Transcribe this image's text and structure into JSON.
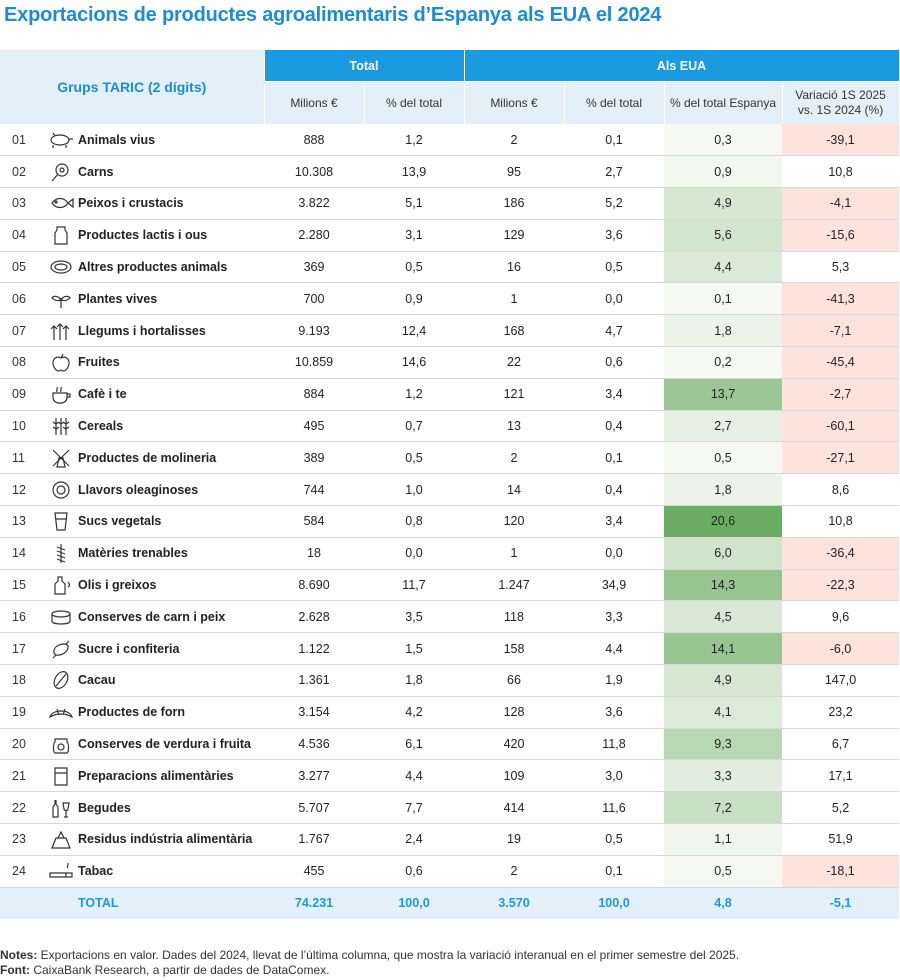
{
  "title": "Exportacions de productes agroalimentaris d’Espanya als EUA el 2024",
  "headers": {
    "group": "Grups TARIC (2 dígits)",
    "total": "Total",
    "eua": "Als EUA",
    "milions": "Milions €",
    "pct_total": "% del total",
    "pct_espanya": "% del total Espanya",
    "variacio_a": "Variació 1S 2025",
    "variacio_b": "vs. 1S 2024 (%)"
  },
  "rows": [
    {
      "code": "01",
      "icon": "pig-icon",
      "name": "Animals vius",
      "tot_m": "888",
      "tot_p": "1,2",
      "eua_m": "2",
      "eua_p": "0,1",
      "esp": "0,3",
      "esp_v": 0.3,
      "var": "-39,1",
      "neg": true
    },
    {
      "code": "02",
      "icon": "meat-icon",
      "name": "Carns",
      "tot_m": "10.308",
      "tot_p": "13,9",
      "eua_m": "95",
      "eua_p": "2,7",
      "esp": "0,9",
      "esp_v": 0.9,
      "var": "10,8",
      "neg": false
    },
    {
      "code": "03",
      "icon": "fish-icon",
      "name": "Peixos i crustacis",
      "tot_m": "3.822",
      "tot_p": "5,1",
      "eua_m": "186",
      "eua_p": "5,2",
      "esp": "4,9",
      "esp_v": 4.9,
      "var": "-4,1",
      "neg": true
    },
    {
      "code": "04",
      "icon": "milk-icon",
      "name": "Productes lactis i ous",
      "tot_m": "2.280",
      "tot_p": "3,1",
      "eua_m": "129",
      "eua_p": "3,6",
      "esp": "5,6",
      "esp_v": 5.6,
      "var": "-15,6",
      "neg": true
    },
    {
      "code": "05",
      "icon": "animal-product-icon",
      "name": "Altres productes animals",
      "tot_m": "369",
      "tot_p": "0,5",
      "eua_m": "16",
      "eua_p": "0,5",
      "esp": "4,4",
      "esp_v": 4.4,
      "var": "5,3",
      "neg": false
    },
    {
      "code": "06",
      "icon": "plant-icon",
      "name": "Plantes vives",
      "tot_m": "700",
      "tot_p": "0,9",
      "eua_m": "1",
      "eua_p": "0,0",
      "esp": "0,1",
      "esp_v": 0.1,
      "var": "-41,3",
      "neg": true
    },
    {
      "code": "07",
      "icon": "vegetables-icon",
      "name": "Llegums i hortalisses",
      "tot_m": "9.193",
      "tot_p": "12,4",
      "eua_m": "168",
      "eua_p": "4,7",
      "esp": "1,8",
      "esp_v": 1.8,
      "var": "-7,1",
      "neg": true
    },
    {
      "code": "08",
      "icon": "apple-icon",
      "name": "Fruites",
      "tot_m": "10.859",
      "tot_p": "14,6",
      "eua_m": "22",
      "eua_p": "0,6",
      "esp": "0,2",
      "esp_v": 0.2,
      "var": "-45,4",
      "neg": true
    },
    {
      "code": "09",
      "icon": "coffee-icon",
      "name": "Cafè i te",
      "tot_m": "884",
      "tot_p": "1,2",
      "eua_m": "121",
      "eua_p": "3,4",
      "esp": "13,7",
      "esp_v": 13.7,
      "var": "-2,7",
      "neg": true
    },
    {
      "code": "10",
      "icon": "wheat-icon",
      "name": "Cereals",
      "tot_m": "495",
      "tot_p": "0,7",
      "eua_m": "13",
      "eua_p": "0,4",
      "esp": "2,7",
      "esp_v": 2.7,
      "var": "-60,1",
      "neg": true
    },
    {
      "code": "11",
      "icon": "mill-icon",
      "name": "Productes de molineria",
      "tot_m": "389",
      "tot_p": "0,5",
      "eua_m": "2",
      "eua_p": "0,1",
      "esp": "0,5",
      "esp_v": 0.5,
      "var": "-27,1",
      "neg": true
    },
    {
      "code": "12",
      "icon": "sunflower-icon",
      "name": "Llavors oleaginoses",
      "tot_m": "744",
      "tot_p": "1,0",
      "eua_m": "14",
      "eua_p": "0,4",
      "esp": "1,8",
      "esp_v": 1.8,
      "var": "8,6",
      "neg": false
    },
    {
      "code": "13",
      "icon": "juice-icon",
      "name": "Sucs vegetals",
      "tot_m": "584",
      "tot_p": "0,8",
      "eua_m": "120",
      "eua_p": "3,4",
      "esp": "20,6",
      "esp_v": 20.6,
      "var": "10,8",
      "neg": false
    },
    {
      "code": "14",
      "icon": "braid-icon",
      "name": "Matèries trenables",
      "tot_m": "18",
      "tot_p": "0,0",
      "eua_m": "1",
      "eua_p": "0,0",
      "esp": "6,0",
      "esp_v": 6.0,
      "var": "-36,4",
      "neg": true
    },
    {
      "code": "15",
      "icon": "oil-bottle-icon",
      "name": "Olis i greixos",
      "tot_m": "8.690",
      "tot_p": "11,7",
      "eua_m": "1.247",
      "eua_p": "34,9",
      "esp": "14,3",
      "esp_v": 14.3,
      "var": "-22,3",
      "neg": true
    },
    {
      "code": "16",
      "icon": "can-icon",
      "name": "Conserves de carn i peix",
      "tot_m": "2.628",
      "tot_p": "3,5",
      "eua_m": "118",
      "eua_p": "3,3",
      "esp": "4,5",
      "esp_v": 4.5,
      "var": "9,6",
      "neg": false
    },
    {
      "code": "17",
      "icon": "candy-icon",
      "name": "Sucre i confiteria",
      "tot_m": "1.122",
      "tot_p": "1,5",
      "eua_m": "158",
      "eua_p": "4,4",
      "esp": "14,1",
      "esp_v": 14.1,
      "var": "-6,0",
      "neg": true
    },
    {
      "code": "18",
      "icon": "cocoa-icon",
      "name": "Cacau",
      "tot_m": "1.361",
      "tot_p": "1,8",
      "eua_m": "66",
      "eua_p": "1,9",
      "esp": "4,9",
      "esp_v": 4.9,
      "var": "147,0",
      "neg": false
    },
    {
      "code": "19",
      "icon": "croissant-icon",
      "name": "Productes de forn",
      "tot_m": "3.154",
      "tot_p": "4,2",
      "eua_m": "128",
      "eua_p": "3,6",
      "esp": "4,1",
      "esp_v": 4.1,
      "var": "23,2",
      "neg": false
    },
    {
      "code": "20",
      "icon": "jar-icon",
      "name": "Conserves de verdura i fruita",
      "tot_m": "4.536",
      "tot_p": "6,1",
      "eua_m": "420",
      "eua_p": "11,8",
      "esp": "9,3",
      "esp_v": 9.3,
      "var": "6,7",
      "neg": false
    },
    {
      "code": "21",
      "icon": "package-icon",
      "name": "Preparacions alimentàries",
      "tot_m": "3.277",
      "tot_p": "4,4",
      "eua_m": "109",
      "eua_p": "3,0",
      "esp": "3,3",
      "esp_v": 3.3,
      "var": "17,1",
      "neg": false
    },
    {
      "code": "22",
      "icon": "drinks-icon",
      "name": "Begudes",
      "tot_m": "5.707",
      "tot_p": "7,7",
      "eua_m": "414",
      "eua_p": "11,6",
      "esp": "7,2",
      "esp_v": 7.2,
      "var": "5,2",
      "neg": false
    },
    {
      "code": "23",
      "icon": "waste-icon",
      "name": "Residus indústria alimentària",
      "tot_m": "1.767",
      "tot_p": "2,4",
      "eua_m": "19",
      "eua_p": "0,5",
      "esp": "1,1",
      "esp_v": 1.1,
      "var": "51,9",
      "neg": false
    },
    {
      "code": "24",
      "icon": "cigarette-icon",
      "name": "Tabac",
      "tot_m": "455",
      "tot_p": "0,6",
      "eua_m": "2",
      "eua_p": "0,1",
      "esp": "0,5",
      "esp_v": 0.5,
      "var": "-18,1",
      "neg": true
    }
  ],
  "total": {
    "label": "TOTAL",
    "tot_m": "74.231",
    "tot_p": "100,0",
    "eua_m": "3.570",
    "eua_p": "100,0",
    "esp": "4,8",
    "var": "-5,1"
  },
  "notes": {
    "notes_label": "Notes:",
    "notes_text": " Exportacions en valor. Dades del 2024, llevat de l’última columna, que mostra la variació interanual en el primer semestre del 2025.",
    "source_label": "Font:",
    "source_text": " CaixaBank Research, a partir de dades de DataComex."
  },
  "colors": {
    "accent": "#1a9ae0",
    "header_bg": "#e4f0f9",
    "neg_bg": "#fde3dc",
    "green_dark": "#6aaf5e"
  }
}
